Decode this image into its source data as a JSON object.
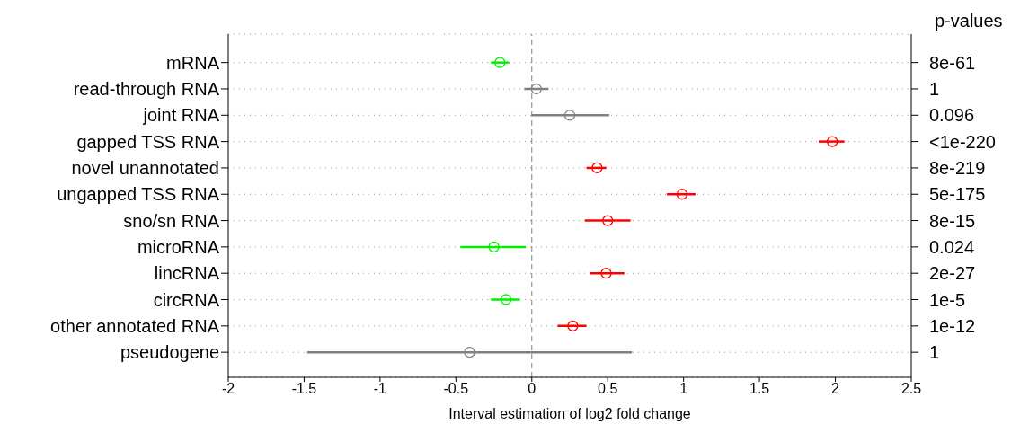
{
  "chart_data": {
    "type": "scatter",
    "orientation": "horizontal",
    "xlabel": "Interval estimation of log2 fold change",
    "y2label": "p-values",
    "categories": [
      "mRNA",
      "read-through RNA",
      "joint RNA",
      "gapped TSS RNA",
      "novel unannotated",
      "ungapped TSS RNA",
      "sno/sn RNA",
      "microRNA",
      "lincRNA",
      "circRNA",
      "other annotated RNA",
      "pseudogene"
    ],
    "values": [
      -0.21,
      0.03,
      0.25,
      1.98,
      0.43,
      0.99,
      0.5,
      -0.25,
      0.49,
      -0.17,
      0.27,
      -0.41
    ],
    "errors": [
      [
        -0.27,
        -0.15
      ],
      [
        -0.05,
        0.11
      ],
      [
        0,
        0.51
      ],
      [
        1.89,
        2.06
      ],
      [
        0.36,
        0.49
      ],
      [
        0.89,
        1.08
      ],
      [
        0.35,
        0.65
      ],
      [
        -0.47,
        -0.04
      ],
      [
        0.38,
        0.61
      ],
      [
        -0.27,
        -0.08
      ],
      [
        0.17,
        0.36
      ],
      [
        -1.48,
        0.66
      ]
    ],
    "colors": [
      "#00ee00",
      "#808080",
      "#808080",
      "#ff0000",
      "#ff0000",
      "#ff0000",
      "#ff0000",
      "#00ee00",
      "#ff0000",
      "#00ee00",
      "#ff0000",
      "#808080"
    ],
    "y2_categories": [
      "8e-61",
      "1",
      "0.096",
      "<1e-220",
      "8e-219",
      "5e-175",
      "8e-15",
      "0.024",
      "2e-27",
      "1e-5",
      "1e-12",
      "1"
    ],
    "xlim": [
      -2,
      2.5
    ],
    "xticks": [
      -2,
      -1.5,
      -1,
      -0.5,
      0,
      0.5,
      1,
      1.5,
      2,
      2.5
    ],
    "grid": "y",
    "marker": "circle",
    "ref_lines": [
      {
        "axis": "x",
        "value": 0,
        "color": "#808080",
        "line_style": "dashed"
      }
    ]
  }
}
